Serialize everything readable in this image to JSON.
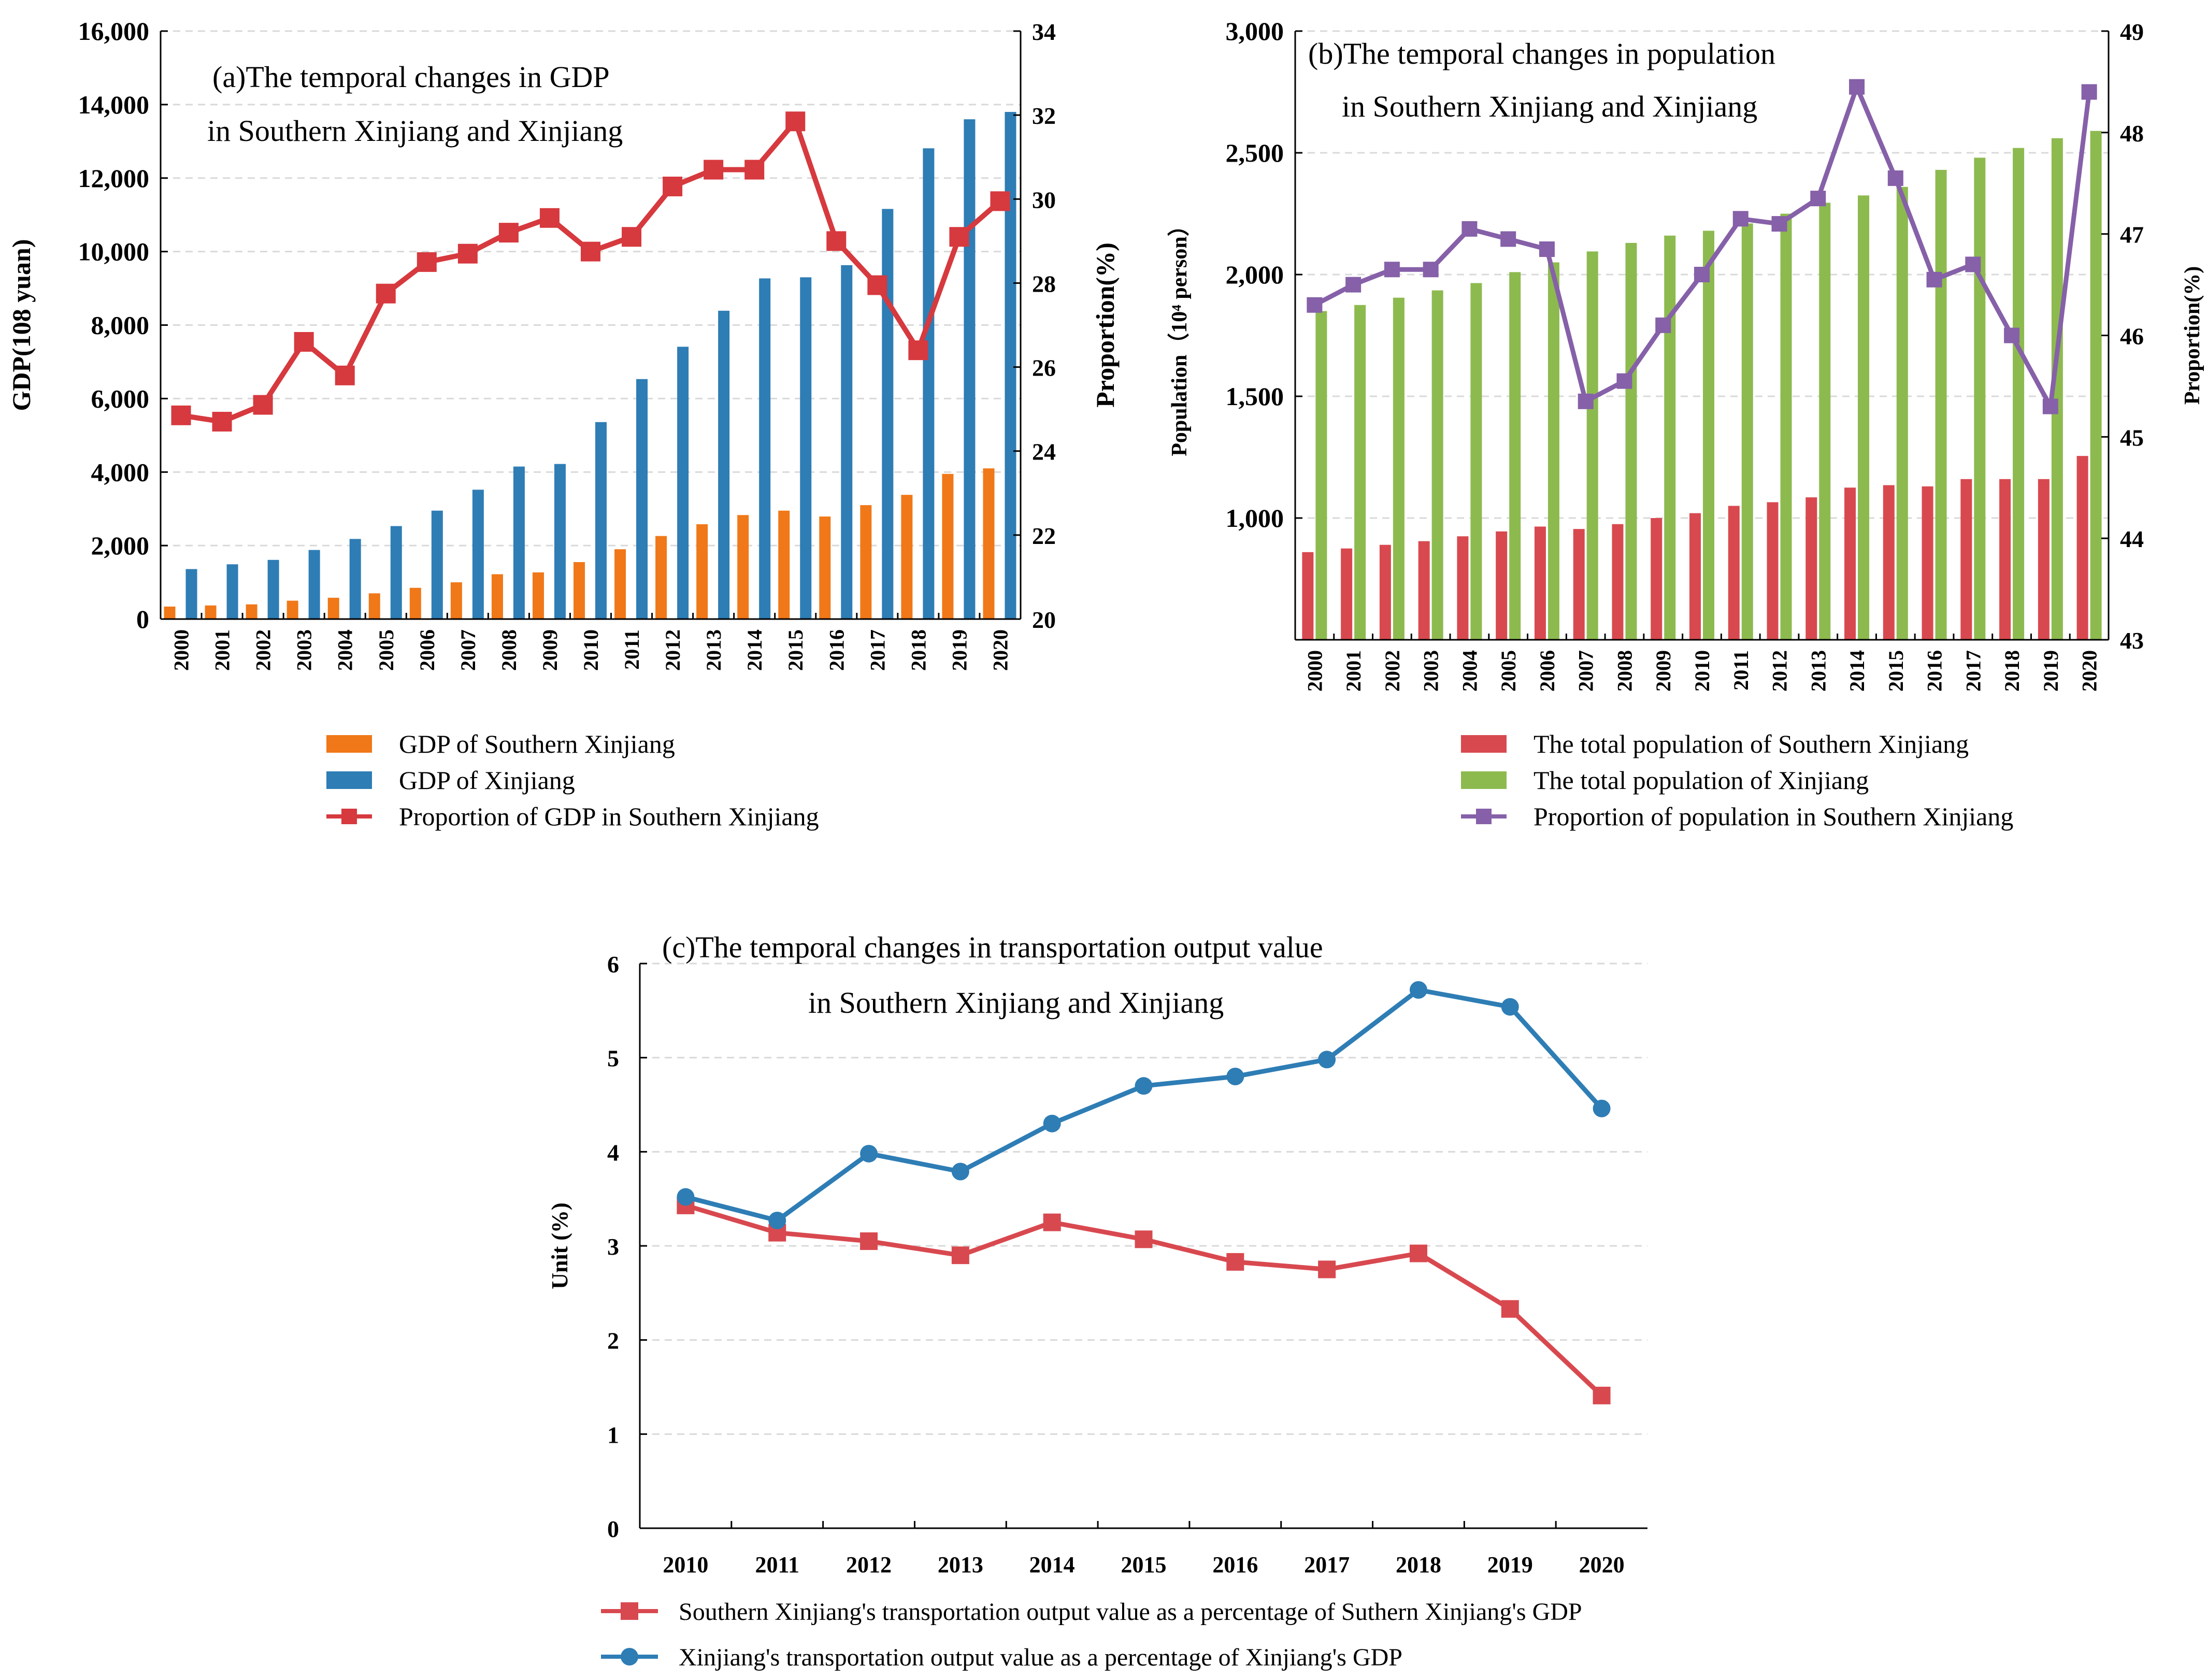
{
  "colors": {
    "orange": "#F07818",
    "blue": "#2E7DB5",
    "red_line": "#D6393E",
    "red_bar": "#D8494F",
    "green": "#8DBA4F",
    "purple": "#8660A8",
    "blue_line": "#2E7DB5",
    "red_line_c": "#D8494F",
    "grid": "#d9d9d9",
    "axis": "#000000"
  },
  "chart_data": [
    {
      "id": "a",
      "type": "bar+line",
      "title_line1": "(a)The temporal changes in GDP",
      "title_line2": "in Southern Xinjiang and Xinjiang",
      "ylabel": "GDP(108 yuan)",
      "y2label": "Proportion(%)",
      "ylim": [
        0,
        16000
      ],
      "yticks": [
        0,
        2000,
        4000,
        6000,
        8000,
        10000,
        12000,
        14000,
        16000
      ],
      "ytick_labels": [
        "0",
        "2,000",
        "4,000",
        "6,000",
        "8,000",
        "10,000",
        "12,000",
        "14,000",
        "16,000"
      ],
      "y2lim": [
        20,
        34
      ],
      "y2ticks": [
        20,
        22,
        24,
        26,
        28,
        30,
        32,
        34
      ],
      "y2tick_labels": [
        "20",
        "22",
        "24",
        "26",
        "28",
        "30",
        "32",
        "34"
      ],
      "categories": [
        "2000",
        "2001",
        "2002",
        "2003",
        "2004",
        "2005",
        "2006",
        "2007",
        "2008",
        "2009",
        "2010",
        "2011",
        "2012",
        "2013",
        "2014",
        "2015",
        "2016",
        "2017",
        "2018",
        "2019",
        "2020"
      ],
      "series": [
        {
          "name": "GDP of Southern Xinjiang",
          "kind": "bar",
          "axis": "left",
          "color_key": "orange",
          "values": [
            340,
            370,
            400,
            500,
            580,
            700,
            850,
            1000,
            1220,
            1270,
            1550,
            1900,
            2260,
            2580,
            2830,
            2950,
            2790,
            3100,
            3380,
            3950,
            4100
          ]
        },
        {
          "name": "GDP of Xinjiang",
          "kind": "bar",
          "axis": "left",
          "color_key": "blue",
          "values": [
            1360,
            1490,
            1610,
            1880,
            2180,
            2530,
            2950,
            3520,
            4150,
            4220,
            5360,
            6530,
            7410,
            8390,
            9270,
            9300,
            9630,
            11160,
            12810,
            13600,
            13800
          ]
        },
        {
          "name": "Proportion of GDP in Southern Xinjiang",
          "kind": "line",
          "axis": "right",
          "color_key": "red_line",
          "marker": "square",
          "values": [
            24.85,
            24.7,
            25.1,
            26.6,
            25.8,
            27.75,
            28.5,
            28.7,
            29.2,
            29.55,
            28.75,
            29.1,
            30.3,
            30.7,
            30.7,
            31.85,
            29.0,
            27.95,
            26.4,
            29.1,
            29.95
          ]
        }
      ]
    },
    {
      "id": "b",
      "type": "bar+line",
      "title_line1": "(b)The temporal changes in population",
      "title_line2": "in Southern Xinjiang and Xinjiang",
      "ylabel": "Population（10⁴ person）",
      "y2label": "Proportion(%)",
      "ylim": [
        500,
        3000
      ],
      "yticks": [
        1000,
        1500,
        2000,
        2500,
        3000
      ],
      "ytick_labels": [
        "1,000",
        "1,500",
        "2,000",
        "2,500",
        "3,000"
      ],
      "y2lim": [
        43,
        49
      ],
      "y2ticks": [
        43,
        44,
        45,
        46,
        47,
        48,
        49
      ],
      "y2tick_labels": [
        "43",
        "44",
        "45",
        "46",
        "47",
        "48",
        "49"
      ],
      "categories": [
        "2000",
        "2001",
        "2002",
        "2003",
        "2004",
        "2005",
        "2006",
        "2007",
        "2008",
        "2009",
        "2010",
        "2011",
        "2012",
        "2013",
        "2014",
        "2015",
        "2016",
        "2017",
        "2018",
        "2019",
        "2020"
      ],
      "series": [
        {
          "name": "The total population of Southern Xinjiang",
          "kind": "bar",
          "axis": "left",
          "color_key": "red_bar",
          "values": [
            860,
            875,
            890,
            905,
            925,
            945,
            965,
            955,
            975,
            1000,
            1020,
            1050,
            1065,
            1085,
            1125,
            1135,
            1130,
            1160,
            1160,
            1160,
            1255
          ]
        },
        {
          "name": "The total population of Xinjiang",
          "kind": "bar",
          "axis": "left",
          "color_key": "green",
          "values": [
            1850,
            1875,
            1905,
            1935,
            1965,
            2010,
            2050,
            2095,
            2130,
            2160,
            2180,
            2210,
            2250,
            2295,
            2325,
            2360,
            2430,
            2480,
            2520,
            2560,
            2590
          ]
        },
        {
          "name": "Proportion of population in Southern Xinjiang",
          "kind": "line",
          "axis": "right",
          "color_key": "purple",
          "marker": "square",
          "values": [
            46.3,
            46.5,
            46.65,
            46.65,
            47.05,
            46.95,
            46.85,
            45.35,
            45.55,
            46.1,
            46.6,
            47.15,
            47.1,
            47.35,
            48.45,
            47.55,
            46.55,
            46.7,
            46.0,
            45.3,
            48.4
          ]
        }
      ]
    },
    {
      "id": "c",
      "type": "line",
      "title_line1": "(c)The temporal changes in transportation output value",
      "title_line2": "in Southern Xinjiang and Xinjiang",
      "ylabel": "Unit (%)",
      "ylim": [
        0,
        6
      ],
      "yticks": [
        0,
        1,
        2,
        3,
        4,
        5,
        6
      ],
      "ytick_labels": [
        "0",
        "1",
        "2",
        "3",
        "4",
        "5",
        "6"
      ],
      "categories": [
        "2010",
        "2011",
        "2012",
        "2013",
        "2014",
        "2015",
        "2016",
        "2017",
        "2018",
        "2019",
        "2020"
      ],
      "series": [
        {
          "name": "Southern Xinjiang's transportation output value as a percentage of Suthern Xinjiang's GDP",
          "kind": "line",
          "color_key": "red_line_c",
          "marker": "square",
          "values": [
            3.43,
            3.14,
            3.05,
            2.9,
            3.25,
            3.07,
            2.83,
            2.75,
            2.92,
            2.33,
            1.41
          ]
        },
        {
          "name": "Xinjiang's transportation output value as a percentage of Xinjiang's GDP",
          "kind": "line",
          "color_key": "blue_line",
          "marker": "circle",
          "values": [
            3.52,
            3.27,
            3.98,
            3.79,
            4.3,
            4.7,
            4.8,
            4.98,
            5.72,
            5.54,
            4.46
          ]
        }
      ]
    }
  ]
}
